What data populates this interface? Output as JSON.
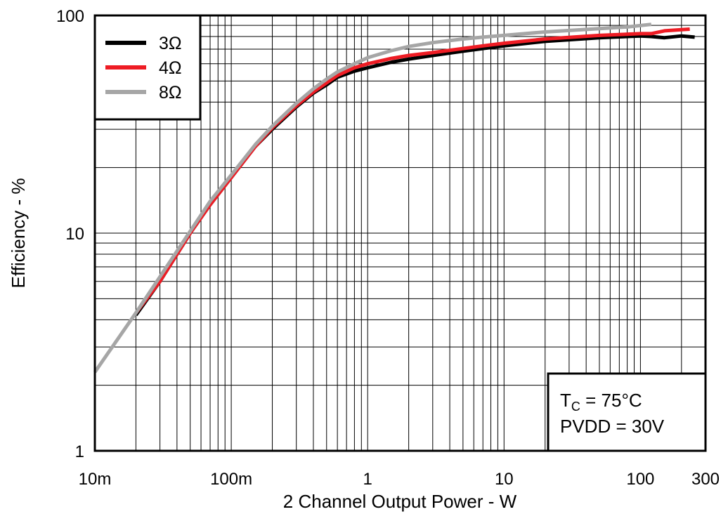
{
  "chart_data": {
    "type": "line",
    "title": "",
    "xlabel": "2 Channel Output Power - W",
    "ylabel": "Efficiency - %",
    "xscale": "log",
    "yscale": "log",
    "xlim": [
      0.01,
      300
    ],
    "ylim": [
      1,
      100
    ],
    "grid": true,
    "x_ticks": [
      {
        "value": 0.01,
        "label": "10m"
      },
      {
        "value": 0.1,
        "label": "100m"
      },
      {
        "value": 1,
        "label": "1"
      },
      {
        "value": 10,
        "label": "10"
      },
      {
        "value": 100,
        "label": "100"
      },
      {
        "value": 300,
        "label": "300"
      }
    ],
    "y_ticks": [
      {
        "value": 1,
        "label": "1"
      },
      {
        "value": 10,
        "label": "10"
      },
      {
        "value": 100,
        "label": "100"
      }
    ],
    "legend_position": "top-left",
    "series": [
      {
        "name": "3Ω",
        "color": "#000000",
        "x": [
          0.02,
          0.03,
          0.05,
          0.07,
          0.1,
          0.15,
          0.2,
          0.3,
          0.4,
          0.5,
          0.6,
          0.8,
          1,
          1.5,
          2,
          3,
          5,
          7,
          10,
          20,
          50,
          100,
          120,
          150,
          200,
          250
        ],
        "y": [
          4.2,
          6.0,
          10.0,
          13.5,
          18.0,
          25.0,
          30.0,
          38.0,
          44.0,
          48.0,
          52.0,
          55.5,
          57.5,
          61.0,
          63.0,
          65.5,
          68.5,
          70.5,
          72.5,
          76.0,
          79.0,
          80.5,
          80.0,
          79.0,
          80.5,
          79.5
        ]
      },
      {
        "name": "4Ω",
        "color": "#ee1c24",
        "x": [
          0.02,
          0.03,
          0.05,
          0.07,
          0.1,
          0.15,
          0.2,
          0.3,
          0.4,
          0.5,
          0.6,
          0.8,
          1,
          1.5,
          2,
          3,
          5,
          7,
          10,
          20,
          50,
          100,
          120,
          150,
          200,
          230
        ],
        "y": [
          4.3,
          6.0,
          10.0,
          13.5,
          18.0,
          25.0,
          30.5,
          38.5,
          44.5,
          49.0,
          53.0,
          57.5,
          60.0,
          63.5,
          65.5,
          67.5,
          70.5,
          72.5,
          74.5,
          78.0,
          81.0,
          82.5,
          82.5,
          85.0,
          86.0,
          86.5
        ]
      },
      {
        "name": "8Ω",
        "color": "#a6a6a6",
        "x": [
          0.01,
          0.02,
          0.03,
          0.05,
          0.07,
          0.1,
          0.15,
          0.2,
          0.3,
          0.4,
          0.5,
          0.6,
          0.8,
          1,
          1.5,
          2,
          3,
          5,
          7,
          10,
          20,
          50,
          80,
          120
        ],
        "y": [
          2.3,
          4.3,
          6.3,
          10.2,
          14.0,
          18.5,
          25.5,
          31.0,
          39.5,
          46.0,
          51.0,
          55.0,
          60.0,
          64.0,
          69.0,
          72.0,
          75.0,
          78.0,
          79.5,
          81.0,
          84.0,
          87.0,
          88.5,
          91.0
        ]
      }
    ],
    "annotations": [
      {
        "prefix": "T",
        "subscript": "C",
        "suffix": " = 75°C"
      },
      {
        "text": "PVDD = 30V"
      }
    ]
  }
}
